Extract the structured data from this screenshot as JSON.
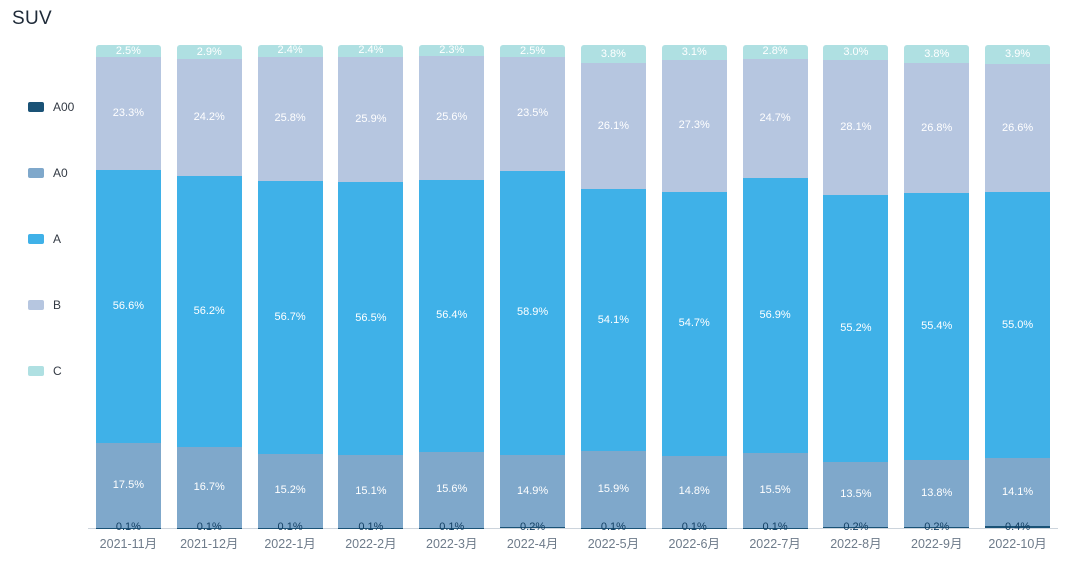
{
  "title": "SUV",
  "chart_data": {
    "type": "bar",
    "stacked": true,
    "percent": true,
    "title": "SUV",
    "xlabel": "",
    "ylabel": "",
    "ylim": [
      0,
      100
    ],
    "grid": false,
    "legend_position": "left",
    "legend_order": [
      "A00",
      "A0",
      "A",
      "B",
      "C"
    ],
    "categories": [
      "2021-11月",
      "2021-12月",
      "2022-1月",
      "2022-2月",
      "2022-3月",
      "2022-4月",
      "2022-5月",
      "2022-6月",
      "2022-7月",
      "2022-8月",
      "2022-9月",
      "2022-10月"
    ],
    "series": [
      {
        "name": "A00",
        "color": "#1a5276",
        "label_color": "#123f63",
        "values": [
          0.1,
          0.1,
          0.1,
          0.1,
          0.1,
          0.2,
          0.1,
          0.1,
          0.1,
          0.2,
          0.2,
          0.4
        ]
      },
      {
        "name": "A0",
        "color": "#7fa8cb",
        "label_color": "#ffffff",
        "values": [
          17.5,
          16.7,
          15.2,
          15.1,
          15.6,
          14.9,
          15.9,
          14.8,
          15.5,
          13.5,
          13.8,
          14.1
        ]
      },
      {
        "name": "A",
        "color": "#3fb1e8",
        "label_color": "#ffffff",
        "values": [
          56.6,
          56.2,
          56.7,
          56.5,
          56.4,
          58.9,
          54.1,
          54.7,
          56.9,
          55.2,
          55.4,
          55.0
        ]
      },
      {
        "name": "B",
        "color": "#b6c6e0",
        "label_color": "#ffffff",
        "values": [
          23.3,
          24.2,
          25.8,
          25.9,
          25.6,
          23.5,
          26.1,
          27.3,
          24.7,
          28.1,
          26.8,
          26.6
        ]
      },
      {
        "name": "C",
        "color": "#afe0e2",
        "label_color": "#ffffff",
        "values": [
          2.5,
          2.9,
          2.4,
          2.4,
          2.3,
          2.5,
          3.8,
          3.1,
          2.8,
          3.0,
          3.8,
          3.9
        ]
      }
    ]
  }
}
